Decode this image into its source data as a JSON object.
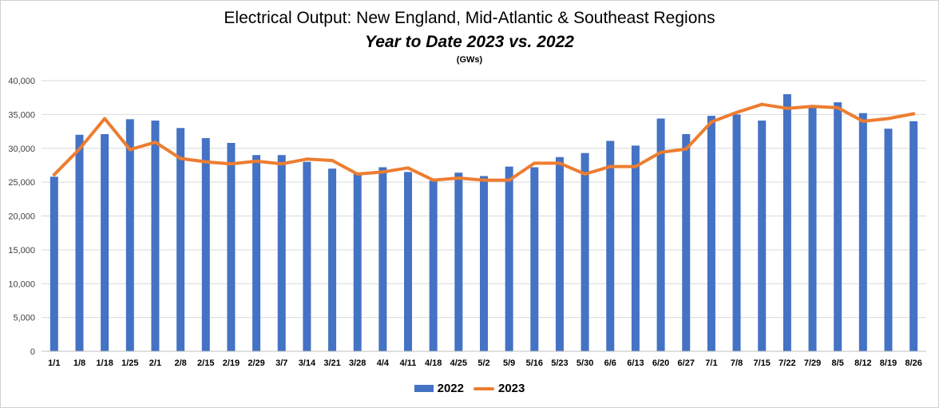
{
  "chart_data": {
    "type": "bar",
    "title": "Electrical Output:  New England, Mid-Atlantic & Southeast Regions",
    "subtitle": "Year to Date 2023 vs. 2022",
    "unit_label": "(GWs)",
    "xlabel": "",
    "ylabel": "",
    "ylim": [
      0,
      40000
    ],
    "yticks": [
      0,
      5000,
      10000,
      15000,
      20000,
      25000,
      30000,
      35000,
      40000
    ],
    "ytick_labels": [
      "0",
      "5,000",
      "10,000",
      "15,000",
      "20,000",
      "25,000",
      "30,000",
      "35,000",
      "40,000"
    ],
    "grid": true,
    "legend_position": "bottom",
    "categories": [
      "1/1",
      "1/8",
      "1/18",
      "1/25",
      "2/1",
      "2/8",
      "2/15",
      "2/19",
      "2/29",
      "3/7",
      "3/14",
      "3/21",
      "3/28",
      "4/4",
      "4/11",
      "4/18",
      "4/25",
      "5/2",
      "5/9",
      "5/16",
      "5/23",
      "5/30",
      "6/6",
      "6/13",
      "6/20",
      "6/27",
      "7/1",
      "7/8",
      "7/15",
      "7/22",
      "7/29",
      "8/5",
      "8/12",
      "8/19",
      "8/26"
    ],
    "series": [
      {
        "name": "2022",
        "type": "bar",
        "color": "#4472C4",
        "values": [
          25800,
          32000,
          32100,
          34300,
          34100,
          33000,
          31500,
          30800,
          29000,
          29000,
          28000,
          27000,
          26200,
          27200,
          26500,
          25200,
          26400,
          25900,
          27300,
          27200,
          28700,
          29300,
          31100,
          30400,
          34400,
          32100,
          34800,
          35000,
          34100,
          38000,
          36000,
          36800,
          35200,
          32900,
          34000
        ]
      },
      {
        "name": "2023",
        "type": "line",
        "color": "#ED7D31",
        "values": [
          26100,
          29900,
          34400,
          29800,
          30900,
          28500,
          28000,
          27700,
          28100,
          27700,
          28400,
          28200,
          26200,
          26500,
          27100,
          25300,
          25600,
          25300,
          25300,
          27800,
          27800,
          26200,
          27300,
          27300,
          29400,
          29900,
          33900,
          35300,
          36500,
          35900,
          36200,
          36000,
          34000,
          34400,
          35100
        ]
      }
    ]
  }
}
